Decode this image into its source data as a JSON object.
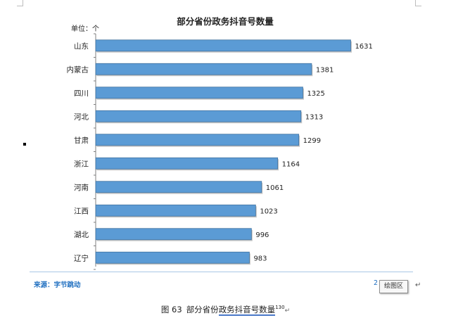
{
  "chart_data": {
    "type": "bar",
    "orientation": "horizontal",
    "title": "部分省份政务抖音号数量",
    "unit_label": "单位：个",
    "categories": [
      "山东",
      "内蒙古",
      "四川",
      "河北",
      "甘肃",
      "浙江",
      "河南",
      "江西",
      "湖北",
      "辽宁"
    ],
    "values": [
      1631,
      1381,
      1325,
      1313,
      1299,
      1164,
      1061,
      1023,
      996,
      983
    ],
    "xlim": [
      0,
      1800
    ],
    "grid": false,
    "legend": "none",
    "bar_color": "#5b9bd5",
    "bar_edge_color": "#41729f"
  },
  "source": "来源：字节跳动",
  "page_fragment": "2",
  "tooltip": "绘图区",
  "return_mark": "↵",
  "caption": {
    "figure": "图 63",
    "prefix": "部分省份",
    "highlight": "政务抖音号数量",
    "sup": "130"
  }
}
